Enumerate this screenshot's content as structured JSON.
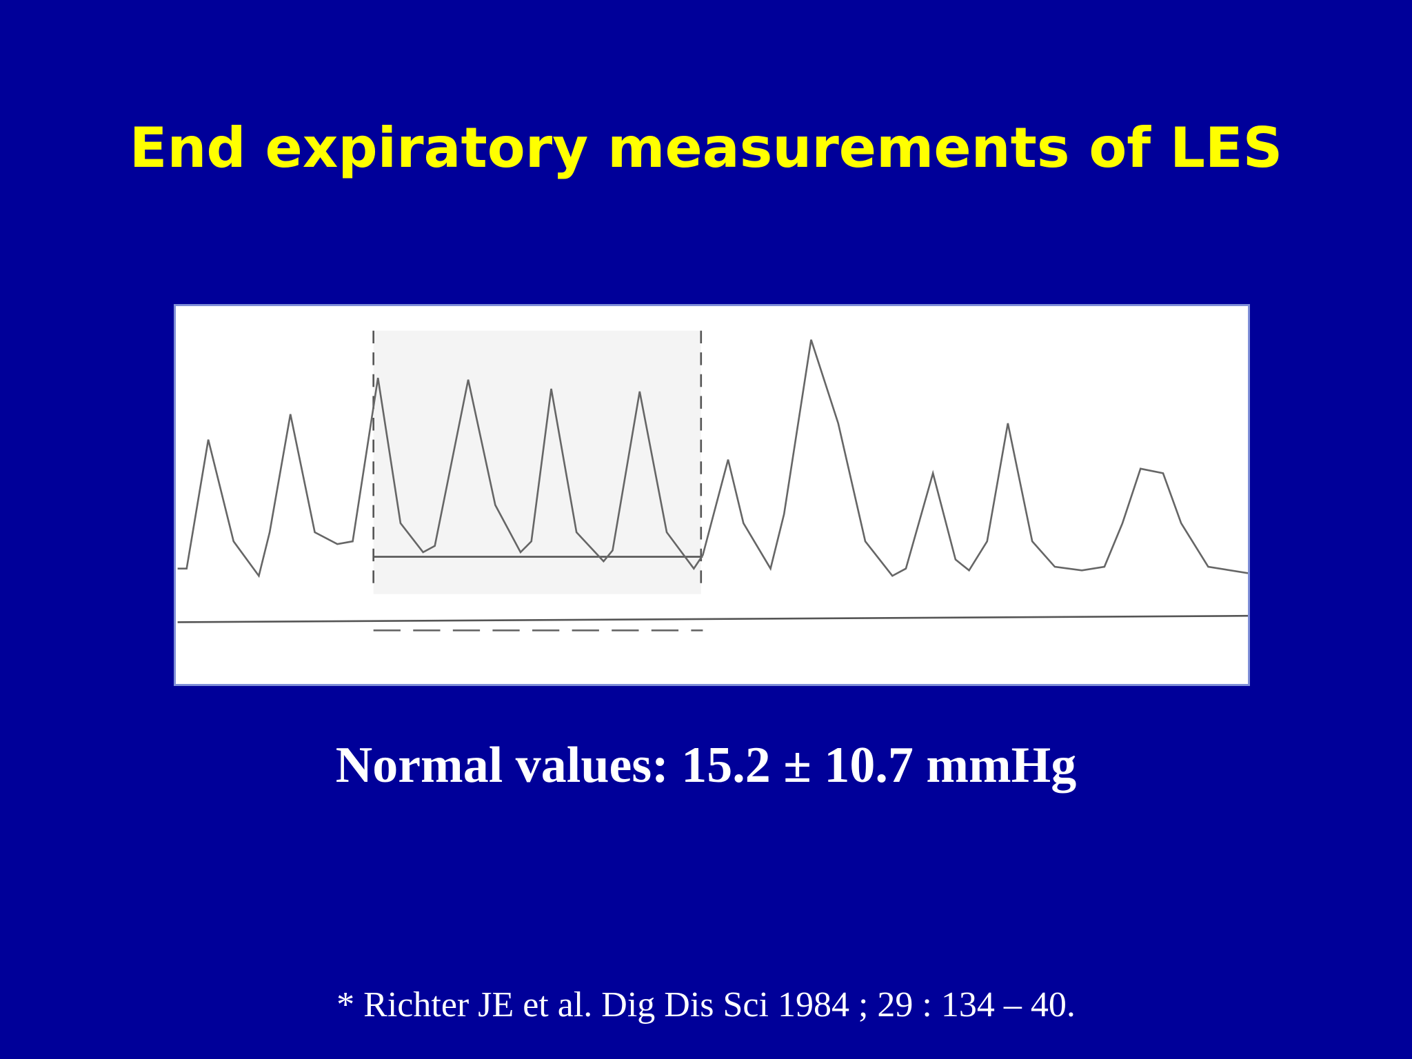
{
  "title": "End expiratory measurements of LES",
  "normal_values": "Normal values: 15.2 ± 10.7 mmHg",
  "citation": "* Richter JE et al. Dig Dis Sci 1984 ; 29 : 134 – 40."
}
